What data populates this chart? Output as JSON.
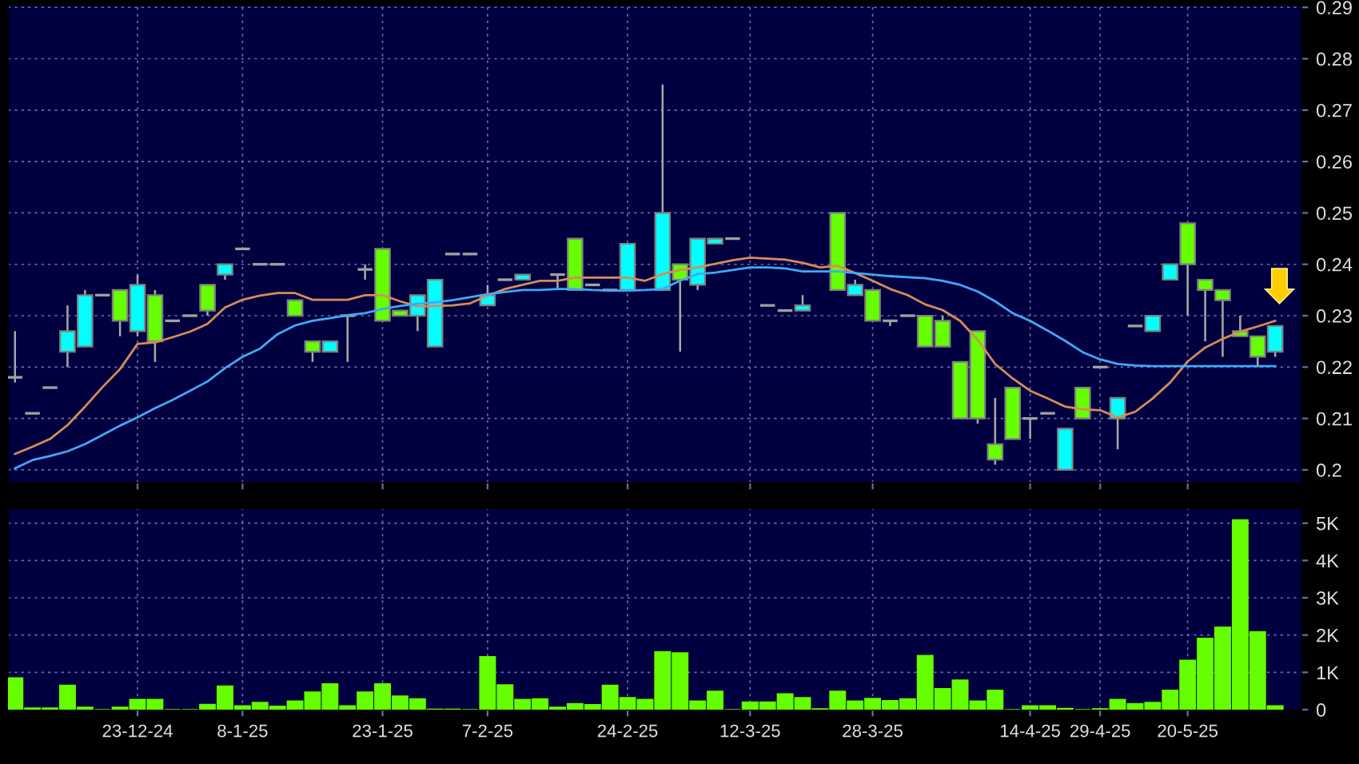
{
  "chart_data": [
    {
      "type": "candlestick",
      "categories": [
        null,
        null,
        null,
        null,
        null,
        null,
        null,
        null,
        null,
        null,
        null,
        null,
        null,
        null,
        null,
        null,
        null,
        null,
        null,
        null,
        null,
        null,
        null,
        null,
        null,
        null,
        null,
        null,
        null,
        null,
        null,
        null,
        null,
        null,
        null,
        null,
        null,
        null,
        null,
        null,
        null,
        null,
        null,
        null,
        null,
        null,
        null,
        null,
        null,
        null,
        null,
        null,
        null,
        null,
        null,
        null,
        null,
        null,
        null,
        null,
        null,
        null,
        null,
        null,
        null,
        null,
        null,
        null,
        null,
        null,
        null,
        null,
        null
      ],
      "ohlc": [
        [
          0.218,
          0.227,
          0.217,
          0.218
        ],
        [
          0.211,
          0.211,
          0.211,
          0.211
        ],
        [
          0.216,
          0.216,
          0.216,
          0.216
        ],
        [
          0.223,
          0.232,
          0.22,
          0.227
        ],
        [
          0.224,
          0.235,
          0.224,
          0.234
        ],
        [
          0.234,
          0.234,
          0.234,
          0.234
        ],
        [
          0.235,
          0.235,
          0.226,
          0.229
        ],
        [
          0.227,
          0.238,
          0.226,
          0.236
        ],
        [
          0.234,
          0.235,
          0.221,
          0.225
        ],
        [
          0.229,
          0.229,
          0.229,
          0.229
        ],
        [
          0.23,
          0.23,
          0.23,
          0.23
        ],
        [
          0.236,
          0.236,
          0.23,
          0.231
        ],
        [
          0.238,
          0.24,
          0.237,
          0.24
        ],
        [
          0.243,
          0.243,
          0.243,
          0.243
        ],
        [
          0.24,
          0.24,
          0.24,
          0.24
        ],
        [
          0.24,
          0.24,
          0.24,
          0.24
        ],
        [
          0.233,
          0.233,
          0.23,
          0.23
        ],
        [
          0.225,
          0.225,
          0.221,
          0.223
        ],
        [
          0.223,
          0.225,
          0.223,
          0.225
        ],
        [
          0.23,
          0.23,
          0.221,
          0.23
        ],
        [
          0.239,
          0.24,
          0.237,
          0.239
        ],
        [
          0.243,
          0.243,
          0.229,
          0.229
        ],
        [
          0.231,
          0.231,
          0.23,
          0.23
        ],
        [
          0.23,
          0.234,
          0.227,
          0.234
        ],
        [
          0.224,
          0.237,
          0.224,
          0.237
        ],
        [
          0.242,
          0.242,
          0.242,
          0.242
        ],
        [
          0.242,
          0.242,
          0.242,
          0.242
        ],
        [
          0.232,
          0.236,
          0.232,
          0.234
        ],
        [
          0.237,
          0.237,
          0.237,
          0.237
        ],
        [
          0.237,
          0.238,
          0.237,
          0.238
        ],
        null,
        [
          0.238,
          0.238,
          0.235,
          0.238
        ],
        [
          0.245,
          0.245,
          0.235,
          0.235
        ],
        [
          0.236,
          0.236,
          0.236,
          0.236
        ],
        [
          0.235,
          0.235,
          0.235,
          0.235
        ],
        [
          0.235,
          0.244,
          0.235,
          0.244
        ],
        null,
        [
          0.235,
          0.275,
          0.235,
          0.25
        ],
        [
          0.24,
          0.24,
          0.223,
          0.237
        ],
        [
          0.236,
          0.245,
          0.235,
          0.245
        ],
        [
          0.244,
          0.245,
          0.244,
          0.245
        ],
        [
          0.245,
          0.245,
          0.245,
          0.245
        ],
        null,
        [
          0.232,
          0.232,
          0.232,
          0.232
        ],
        [
          0.231,
          0.231,
          0.231,
          0.231
        ],
        [
          0.231,
          0.234,
          0.231,
          0.232
        ],
        null,
        [
          0.25,
          0.25,
          0.235,
          0.235
        ],
        [
          0.234,
          0.237,
          0.234,
          0.236
        ],
        [
          0.235,
          0.235,
          0.229,
          0.229
        ],
        [
          0.229,
          0.229,
          0.228,
          0.229
        ],
        [
          0.23,
          0.23,
          0.23,
          0.23
        ],
        [
          0.23,
          0.23,
          0.224,
          0.224
        ],
        [
          0.229,
          0.23,
          0.224,
          0.224
        ],
        [
          0.221,
          0.221,
          0.21,
          0.21
        ],
        [
          0.227,
          0.227,
          0.209,
          0.21
        ],
        [
          0.205,
          0.214,
          0.201,
          0.202
        ],
        [
          0.216,
          0.216,
          0.206,
          0.206
        ],
        [
          0.21,
          0.21,
          0.206,
          0.21
        ],
        [
          0.211,
          0.211,
          0.211,
          0.211
        ],
        [
          0.2,
          0.208,
          0.2,
          0.208
        ],
        [
          0.216,
          0.216,
          0.21,
          0.21
        ],
        [
          0.22,
          0.22,
          0.22,
          0.22
        ],
        [
          0.21,
          0.214,
          0.204,
          0.214
        ],
        [
          0.228,
          0.228,
          0.228,
          0.228
        ],
        [
          0.227,
          0.23,
          0.227,
          0.23
        ],
        [
          0.237,
          0.24,
          0.237,
          0.24
        ],
        [
          0.248,
          0.248,
          0.23,
          0.24
        ],
        [
          0.237,
          0.237,
          0.225,
          0.235
        ],
        [
          0.235,
          0.235,
          0.222,
          0.233
        ],
        [
          0.227,
          0.23,
          0.226,
          0.226
        ],
        [
          0.226,
          0.226,
          0.22,
          0.222
        ],
        [
          0.223,
          0.228,
          0.222,
          0.228
        ]
      ],
      "colors": [
        "#a0a0a0",
        "#a0a0a0",
        "#a0a0a0",
        "#00ffff",
        "#00ffff",
        "#a0a0a0",
        "#66ff00",
        "#00ffff",
        "#66ff00",
        "#a0a0a0",
        "#a0a0a0",
        "#66ff00",
        "#00ffff",
        "#a0a0a0",
        "#a0a0a0",
        "#a0a0a0",
        "#66ff00",
        "#66ff00",
        "#00ffff",
        "#a0a0a0",
        "#a0a0a0",
        "#66ff00",
        "#66ff00",
        "#00ffff",
        "#00ffff",
        "#a0a0a0",
        "#a0a0a0",
        "#00ffff",
        "#a0a0a0",
        "#00ffff",
        null,
        "#a0a0a0",
        "#66ff00",
        "#a0a0a0",
        "#a0a0a0",
        "#00ffff",
        null,
        "#00ffff",
        "#66ff00",
        "#00ffff",
        "#00ffff",
        "#a0a0a0",
        null,
        "#a0a0a0",
        "#a0a0a0",
        "#00ffff",
        null,
        "#66ff00",
        "#00ffff",
        "#66ff00",
        "#a0a0a0",
        "#a0a0a0",
        "#66ff00",
        "#66ff00",
        "#66ff00",
        "#66ff00",
        "#66ff00",
        "#66ff00",
        "#a0a0a0",
        "#a0a0a0",
        "#00ffff",
        "#66ff00",
        "#a0a0a0",
        "#00ffff",
        "#a0a0a0",
        "#00ffff",
        "#00ffff",
        "#66ff00",
        "#66ff00",
        "#66ff00",
        "#66ff00",
        "#66ff00",
        "#00ffff"
      ],
      "series": [
        {
          "type": "line",
          "color": "#d98b5a",
          "values": [
            0.2031,
            0.2045,
            0.206,
            0.2087,
            0.2123,
            0.2161,
            0.2196,
            0.2245,
            0.2248,
            0.2258,
            0.2269,
            0.2284,
            0.2316,
            0.2331,
            0.2339,
            0.2344,
            0.2344,
            0.2331,
            0.2331,
            0.2331,
            0.234,
            0.234,
            0.2328,
            0.2318,
            0.2319,
            0.232,
            0.2324,
            0.2339,
            0.2352,
            0.236,
            0.2368,
            0.2368,
            0.2374,
            0.2374,
            0.2374,
            0.2374,
            0.2368,
            0.2381,
            0.2389,
            0.2394,
            0.2401,
            0.2408,
            0.2413,
            0.2411,
            0.2409,
            0.2403,
            0.2394,
            0.2397,
            0.2383,
            0.2368,
            0.2352,
            0.234,
            0.2322,
            0.2311,
            0.229,
            0.2253,
            0.2206,
            0.2178,
            0.2154,
            0.2139,
            0.2123,
            0.2118,
            0.2116,
            0.2102,
            0.2113,
            0.2139,
            0.217,
            0.2211,
            0.2238,
            0.2255,
            0.2269,
            0.2279,
            0.229
          ]
        },
        {
          "type": "line",
          "color": "#3fa9f5",
          "values": [
            0.2003,
            0.2019,
            0.2027,
            0.2036,
            0.205,
            0.2068,
            0.2086,
            0.2102,
            0.212,
            0.2136,
            0.2154,
            0.2172,
            0.2198,
            0.222,
            0.2236,
            0.2264,
            0.2281,
            0.229,
            0.2295,
            0.2301,
            0.2305,
            0.2313,
            0.2319,
            0.2323,
            0.2326,
            0.233,
            0.2336,
            0.2342,
            0.2346,
            0.235,
            0.235,
            0.2352,
            0.2352,
            0.235,
            0.2349,
            0.2349,
            0.235,
            0.2352,
            0.2368,
            0.2381,
            0.2384,
            0.2389,
            0.2394,
            0.2394,
            0.2392,
            0.2386,
            0.2386,
            0.2386,
            0.2383,
            0.238,
            0.2377,
            0.2375,
            0.2373,
            0.2368,
            0.236,
            0.2347,
            0.2328,
            0.2305,
            0.229,
            0.2271,
            0.2251,
            0.2229,
            0.2215,
            0.2206,
            0.2203,
            0.2202,
            0.2202,
            0.2202,
            0.2202,
            0.2202,
            0.2202,
            0.2202,
            0.2202
          ]
        }
      ],
      "ylim": [
        0.1975,
        0.2905
      ],
      "yticks": [
        0.2,
        0.21,
        0.22,
        0.23,
        0.24,
        0.25,
        0.26,
        0.27,
        0.28,
        0.29
      ],
      "grid": true,
      "tick_labels": "y",
      "legend": false
    },
    {
      "type": "bar",
      "categories": [
        null,
        null,
        null,
        null,
        null,
        null,
        null,
        "23-12-24",
        null,
        null,
        null,
        null,
        null,
        "8-1-25",
        null,
        null,
        null,
        null,
        null,
        null,
        null,
        "23-1-25",
        null,
        null,
        null,
        null,
        null,
        "7-2-25",
        null,
        null,
        null,
        null,
        null,
        null,
        null,
        "24-2-25",
        null,
        null,
        null,
        null,
        null,
        null,
        "12-3-25",
        null,
        null,
        null,
        null,
        null,
        null,
        "28-3-25",
        null,
        null,
        null,
        null,
        null,
        null,
        null,
        null,
        "14-4-25",
        null,
        null,
        null,
        "29-4-25",
        null,
        null,
        null,
        null,
        "20-5-25",
        null,
        null,
        null,
        null,
        null
      ],
      "color": "#66ff00",
      "values": [
        850,
        40,
        40,
        650,
        60,
        0,
        60,
        270,
        270,
        0,
        0,
        140,
        630,
        100,
        190,
        90,
        230,
        470,
        690,
        100,
        470,
        690,
        360,
        290,
        10,
        10,
        0,
        1420,
        660,
        270,
        290,
        60,
        160,
        130,
        650,
        320,
        270,
        1550,
        1520,
        230,
        490,
        0,
        200,
        200,
        420,
        320,
        20,
        490,
        230,
        300,
        240,
        290,
        1450,
        560,
        790,
        230,
        520,
        0,
        100,
        100,
        30,
        0,
        20,
        270,
        160,
        190,
        520,
        1320,
        1910,
        2210,
        5090,
        2090,
        100
      ],
      "ylim": [
        0,
        5400
      ],
      "yticks": [
        0,
        {
          "value": 1000,
          "label": "1K"
        },
        {
          "value": 2000,
          "label": "2K"
        },
        {
          "value": 3000,
          "label": "3K"
        },
        {
          "value": 4000,
          "label": "4K"
        },
        {
          "value": 5000,
          "label": "5K"
        }
      ],
      "grid": true,
      "legend": false
    }
  ]
}
